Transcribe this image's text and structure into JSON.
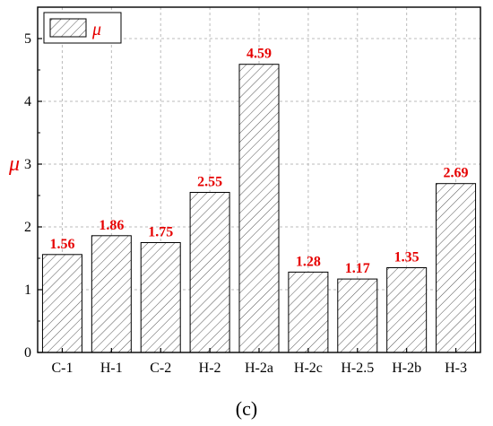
{
  "chart_data": {
    "type": "bar",
    "categories": [
      "C-1",
      "H-1",
      "C-2",
      "H-2",
      "H-2a",
      "H-2c",
      "H-2.5",
      "H-2b",
      "H-3"
    ],
    "values": [
      1.56,
      1.86,
      1.75,
      2.55,
      4.59,
      1.28,
      1.17,
      1.35,
      2.69
    ],
    "data_labels": [
      "1.56",
      "1.86",
      "1.75",
      "2.55",
      "4.59",
      "1.28",
      "1.17",
      "1.35",
      "2.69"
    ],
    "ylabel": "μ",
    "yticks": [
      "0",
      "1",
      "2",
      "3",
      "4",
      "5"
    ],
    "ylim": [
      0,
      5.5
    ],
    "legend": {
      "label": "μ",
      "position": "top-left"
    },
    "grid": true,
    "bar_fill": "hatched",
    "accent_color": "#e60000",
    "caption": "(c)"
  }
}
